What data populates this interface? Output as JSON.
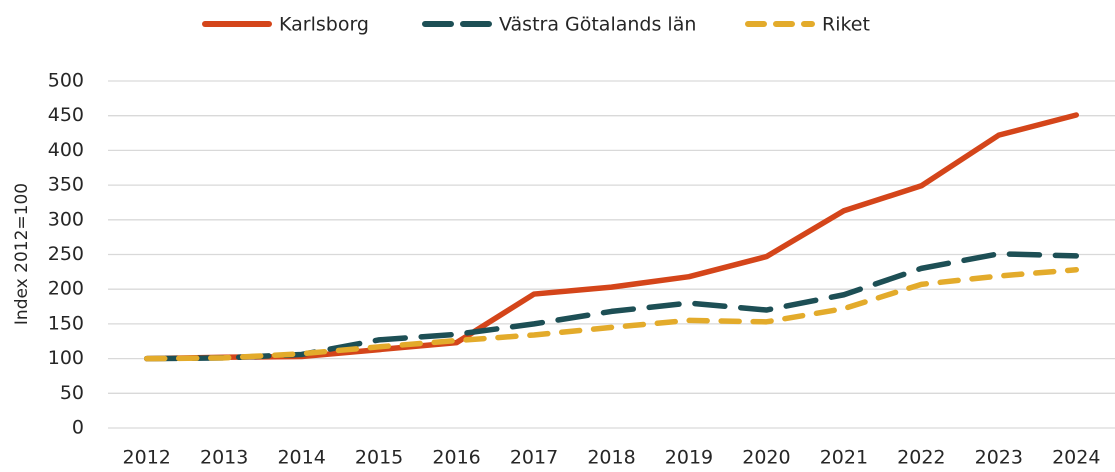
{
  "chart_data": {
    "type": "line",
    "y_label": "Index 2012=100",
    "categories": [
      "2012",
      "2013",
      "2014",
      "2015",
      "2016",
      "2017",
      "2018",
      "2019",
      "2020",
      "2021",
      "2022",
      "2023",
      "2024"
    ],
    "series": [
      {
        "name": "Karlsborg",
        "color": "#d4451a",
        "style": "solid",
        "values": [
          100,
          102,
          103,
          113,
          123,
          193,
          203,
          218,
          247,
          313,
          349,
          422,
          451
        ]
      },
      {
        "name": "Västra Götalands län",
        "color": "#1d4f55",
        "style": "dashed",
        "values": [
          100,
          101,
          106,
          127,
          135,
          150,
          168,
          180,
          170,
          192,
          230,
          251,
          248
        ]
      },
      {
        "name": "Riket",
        "color": "#e3ab2b",
        "style": "dashed",
        "values": [
          100,
          101,
          107,
          117,
          126,
          134,
          145,
          155,
          153,
          172,
          207,
          219,
          228
        ]
      }
    ],
    "ylim": [
      0,
      500
    ],
    "yticks": [
      0,
      50,
      100,
      150,
      200,
      250,
      300,
      350,
      400,
      450,
      500
    ],
    "grid": true,
    "legend": "top"
  }
}
